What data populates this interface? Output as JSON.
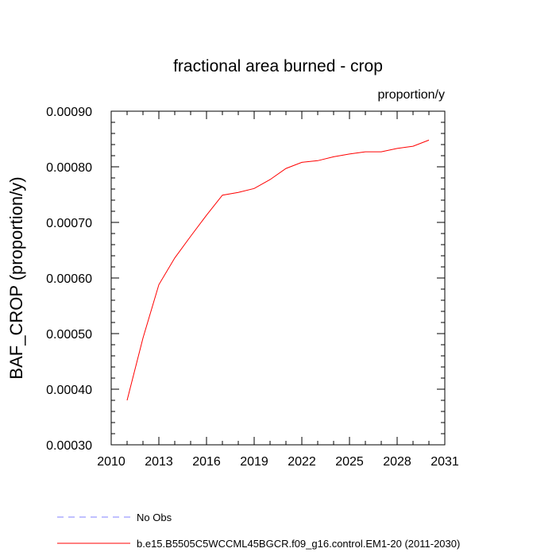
{
  "chart_data": {
    "type": "line",
    "title": "fractional area burned - crop",
    "units_label": "proportion/y",
    "ylabel": "BAF_CROP  (proportion/y)",
    "xlabel": "",
    "xlim": [
      2010,
      2031
    ],
    "ylim": [
      0.0003,
      0.0009
    ],
    "x_ticks": [
      2010,
      2013,
      2016,
      2019,
      2022,
      2025,
      2028,
      2031
    ],
    "x_tick_labels": [
      "2010",
      "2013",
      "2016",
      "2019",
      "2022",
      "2025",
      "2028",
      "2031"
    ],
    "y_ticks": [
      0.0003,
      0.0004,
      0.0005,
      0.0006,
      0.0007,
      0.0008,
      0.0009
    ],
    "y_tick_labels": [
      "0.00030",
      "0.00040",
      "0.00050",
      "0.00060",
      "0.00070",
      "0.00080",
      "0.00090"
    ],
    "grid": false,
    "legend_position": "bottom",
    "series": [
      {
        "name": "b.e15.B5505C5WCCML45BGCR.f09_g16.control.EM1-20 (2011-2030)",
        "color": "#ff0000",
        "line_style": "solid",
        "x": [
          2011,
          2012,
          2013,
          2014,
          2015,
          2016,
          2017,
          2018,
          2019,
          2020,
          2021,
          2022,
          2023,
          2024,
          2025,
          2026,
          2027,
          2028,
          2029,
          2030
        ],
        "y": [
          0.00038,
          0.000492,
          0.000588,
          0.000636,
          0.000675,
          0.000713,
          0.000749,
          0.000754,
          0.000761,
          0.000777,
          0.000797,
          0.000808,
          0.000811,
          0.000818,
          0.000823,
          0.000827,
          0.000827,
          0.000833,
          0.000837,
          0.000848
        ]
      }
    ],
    "legend": [
      {
        "label": "No Obs",
        "color": "#8080ff",
        "line_style": "dashed"
      },
      {
        "label": "b.e15.B5505C5WCCML45BGCR.f09_g16.control.EM1-20 (2011-2030)",
        "color": "#ff0000",
        "line_style": "solid"
      }
    ]
  }
}
